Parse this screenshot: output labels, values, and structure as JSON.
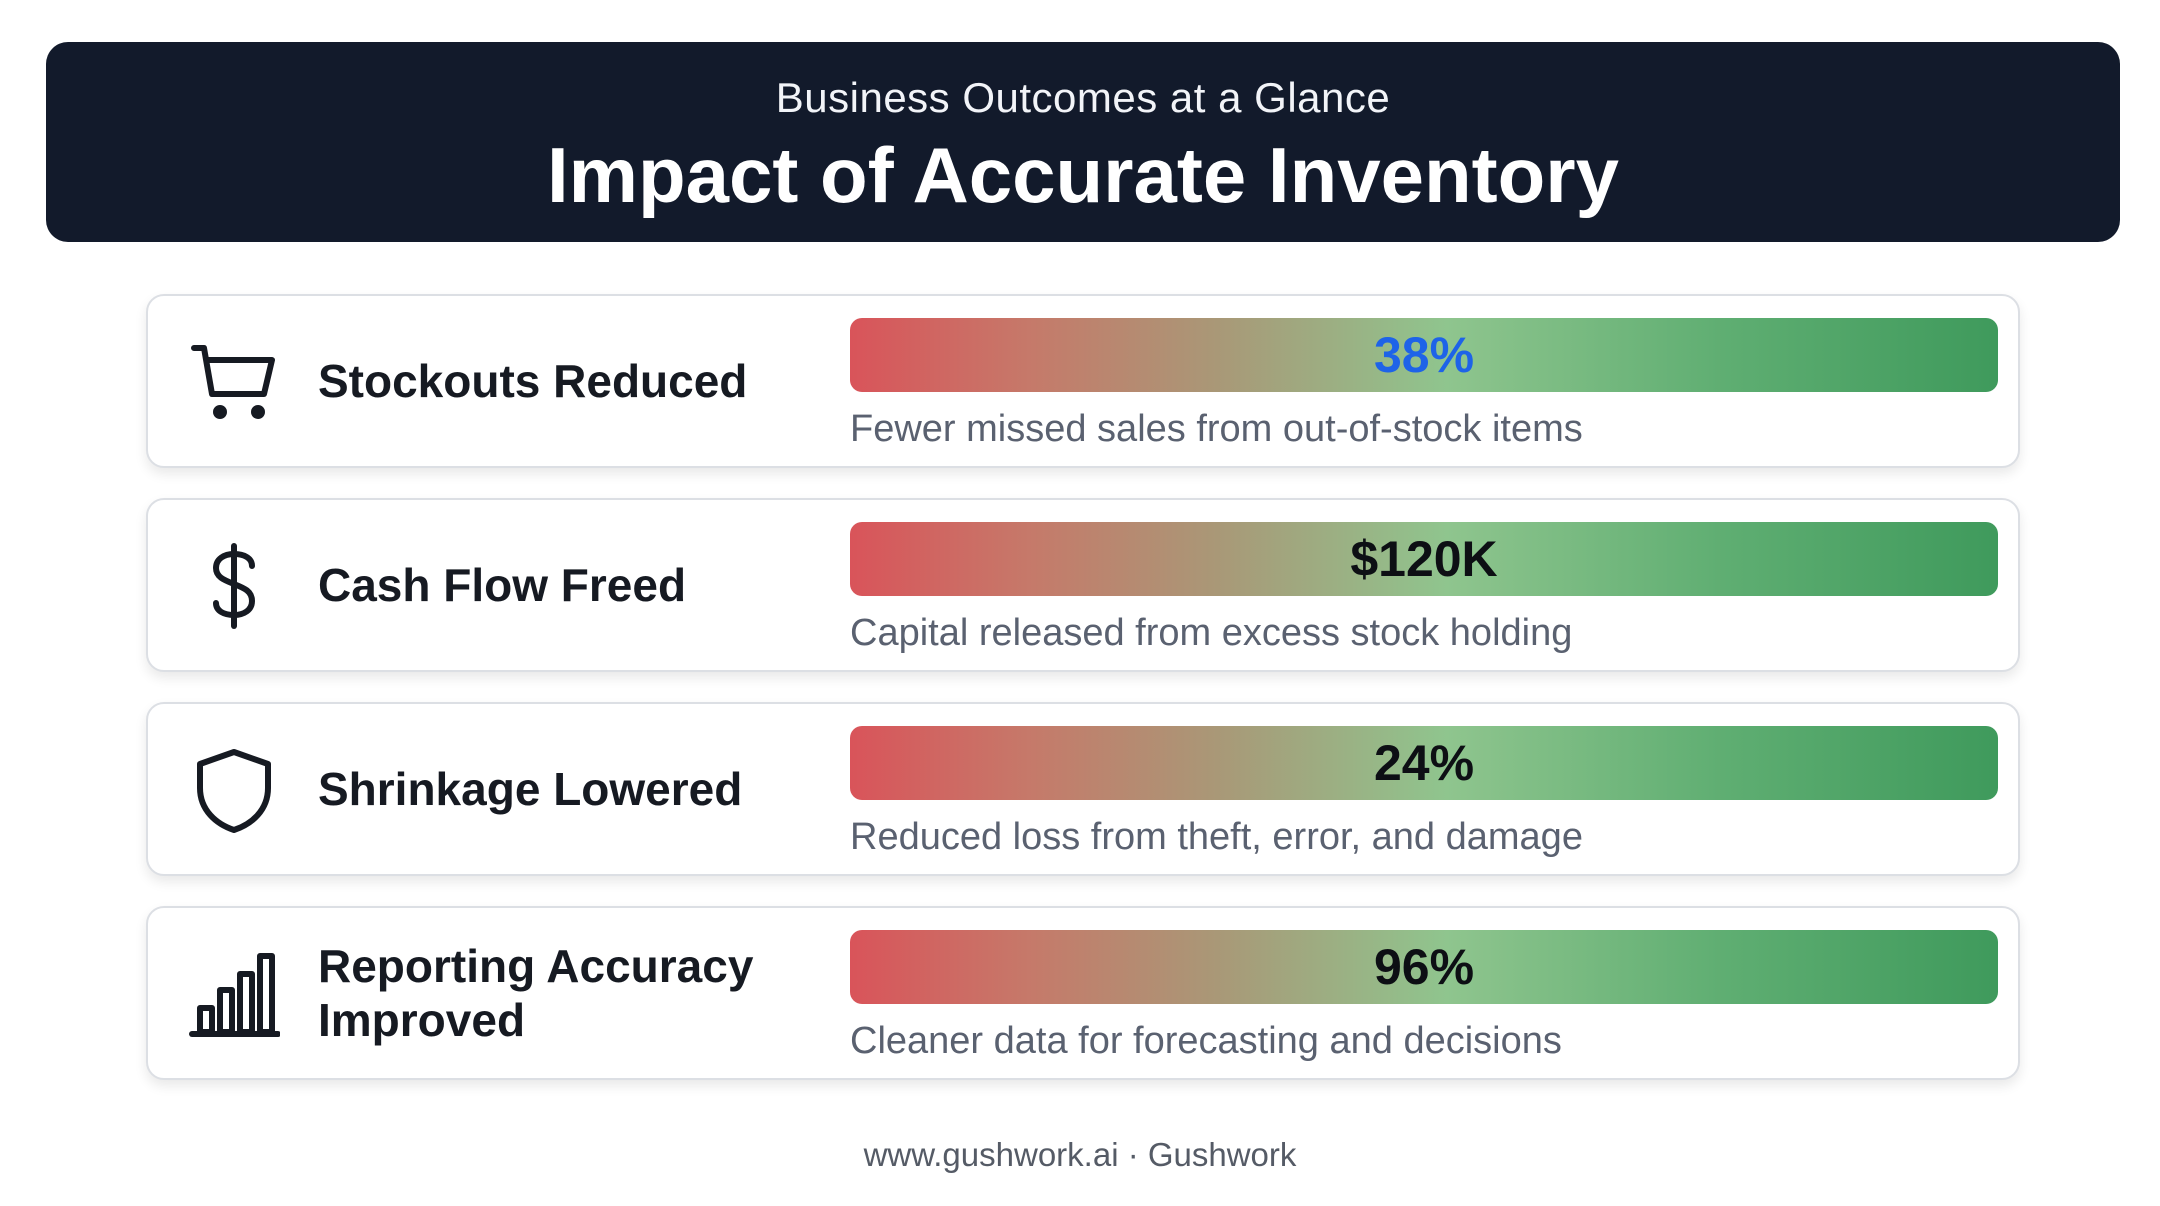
{
  "header": {
    "subtitle": "Business Outcomes at a Glance",
    "title": "Impact of Accurate Inventory"
  },
  "metrics": [
    {
      "icon": "shopping-cart-icon",
      "label": "Stockouts Reduced",
      "value": "38%",
      "description": "Fewer missed sales from out-of-stock items"
    },
    {
      "icon": "dollar-sign-icon",
      "label": "Cash Flow Freed",
      "value": "$120K",
      "description": "Capital released from excess stock holding"
    },
    {
      "icon": "shield-icon",
      "label": "Shrinkage Lowered",
      "value": "24%",
      "description": "Reduced loss from theft, error, and damage"
    },
    {
      "icon": "bar-chart-icon",
      "label": "Reporting Accuracy Improved",
      "value": "96%",
      "description": "Cleaner data for forecasting and decisions"
    }
  ],
  "colors": {
    "header_bg": "#121a2b",
    "highlight_value": "#1e63e8",
    "bar_start": "#d9545a",
    "bar_end": "#3f9a5c"
  },
  "footer": {
    "text": "www.gushwork.ai · Gushwork"
  }
}
